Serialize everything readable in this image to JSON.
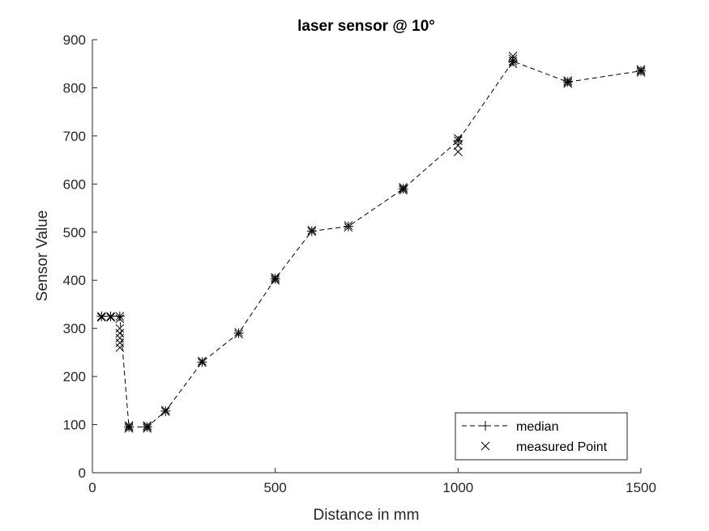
{
  "chart_data": {
    "type": "line",
    "title": "laser sensor @ 10°",
    "xlabel": "Distance in mm",
    "ylabel": "Sensor Value",
    "xlim": [
      0,
      1500
    ],
    "ylim": [
      0,
      900
    ],
    "xticks": [
      0,
      500,
      1000,
      1500
    ],
    "yticks": [
      0,
      100,
      200,
      300,
      400,
      500,
      600,
      700,
      800,
      900
    ],
    "grid": false,
    "legend_position": "bottom-right",
    "colors": {
      "line": "#000000",
      "axis": "#262626"
    },
    "series": [
      {
        "name": "median",
        "style": "dashed line with plus markers",
        "x": [
          25,
          50,
          75,
          100,
          150,
          200,
          300,
          400,
          500,
          600,
          700,
          850,
          1000,
          1150,
          1300,
          1500
        ],
        "y": [
          325,
          325,
          325,
          95,
          95,
          128,
          230,
          290,
          403,
          502,
          512,
          590,
          690,
          855,
          812,
          835
        ]
      },
      {
        "name": "measured Point",
        "style": "x markers",
        "points": [
          [
            25,
            325
          ],
          [
            25,
            323
          ],
          [
            50,
            325
          ],
          [
            50,
            323
          ],
          [
            75,
            325
          ],
          [
            75,
            320
          ],
          [
            75,
            300
          ],
          [
            75,
            290
          ],
          [
            75,
            280
          ],
          [
            75,
            270
          ],
          [
            75,
            260
          ],
          [
            100,
            98
          ],
          [
            100,
            95
          ],
          [
            100,
            92
          ],
          [
            150,
            98
          ],
          [
            150,
            95
          ],
          [
            150,
            92
          ],
          [
            200,
            130
          ],
          [
            200,
            127
          ],
          [
            300,
            232
          ],
          [
            300,
            229
          ],
          [
            400,
            292
          ],
          [
            400,
            288
          ],
          [
            500,
            406
          ],
          [
            500,
            403
          ],
          [
            500,
            400
          ],
          [
            600,
            504
          ],
          [
            600,
            501
          ],
          [
            700,
            514
          ],
          [
            700,
            510
          ],
          [
            850,
            593
          ],
          [
            850,
            590
          ],
          [
            850,
            587
          ],
          [
            1000,
            695
          ],
          [
            1000,
            690
          ],
          [
            1000,
            680
          ],
          [
            1000,
            667
          ],
          [
            1150,
            866
          ],
          [
            1150,
            860
          ],
          [
            1150,
            855
          ],
          [
            1150,
            850
          ],
          [
            1300,
            815
          ],
          [
            1300,
            812
          ],
          [
            1300,
            809
          ],
          [
            1500,
            838
          ],
          [
            1500,
            835
          ],
          [
            1500,
            832
          ]
        ]
      }
    ]
  }
}
